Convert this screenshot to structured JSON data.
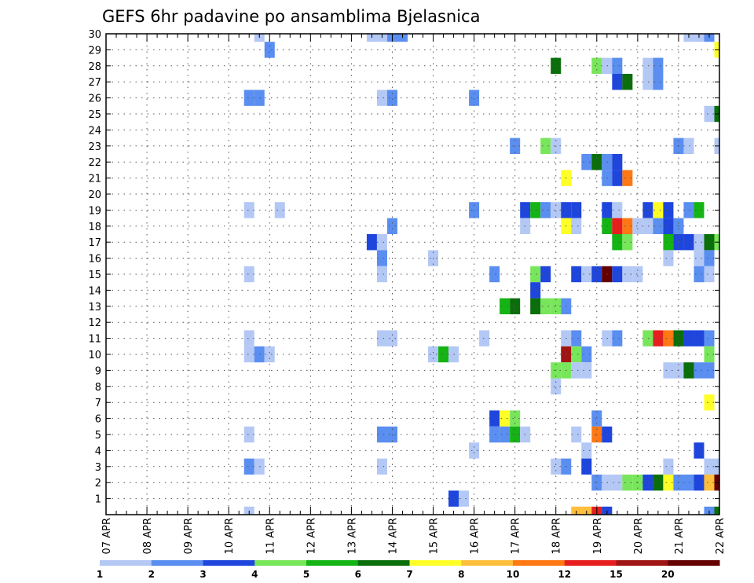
{
  "chart_data": {
    "type": "heatmap",
    "title": "GEFS 6hr padavine po ansamblima Bjelasnica",
    "x_tick_labels": [
      "07 APR",
      "08 APR",
      "09 APR",
      "10 APR",
      "11 APR",
      "12 APR",
      "13 APR",
      "14 APR",
      "15 APR",
      "16 APR",
      "17 APR",
      "18 APR",
      "19 APR",
      "20 APR",
      "21 APR",
      "22 APR"
    ],
    "x_steps_per_day": 4,
    "x_range_steps": [
      0,
      60
    ],
    "y_tick_labels": [
      "1",
      "2",
      "3",
      "4",
      "5",
      "6",
      "7",
      "8",
      "9",
      "10",
      "11",
      "12",
      "13",
      "14",
      "15",
      "16",
      "17",
      "18",
      "19",
      "20",
      "21",
      "22",
      "23",
      "24",
      "25",
      "26",
      "27",
      "28",
      "29",
      "30"
    ],
    "y_range": [
      0,
      30
    ],
    "grid": true,
    "legend_placement": "bottom",
    "legend": {
      "labels": [
        "1",
        "2",
        "3",
        "4",
        "5",
        "6",
        "7",
        "8",
        "10",
        "12",
        "15",
        "20"
      ],
      "colors": [
        "#b4c8f5",
        "#5a8ef0",
        "#1e46dc",
        "#78e65a",
        "#14b414",
        "#0a6e0a",
        "#ffff28",
        "#ffbe3c",
        "#ff7814",
        "#e61e1e",
        "#a01414",
        "#640000"
      ]
    },
    "cells": [
      [
        15,
        30,
        0
      ],
      [
        16,
        29,
        1
      ],
      [
        26,
        30,
        0
      ],
      [
        27,
        30,
        0
      ],
      [
        28,
        30,
        1
      ],
      [
        29,
        30,
        1
      ],
      [
        57,
        30,
        0
      ],
      [
        58,
        30,
        0
      ],
      [
        59,
        30,
        1
      ],
      [
        60,
        29,
        6
      ],
      [
        44,
        28,
        5
      ],
      [
        48,
        28,
        3
      ],
      [
        49,
        28,
        0
      ],
      [
        50,
        28,
        1
      ],
      [
        53,
        28,
        0
      ],
      [
        54,
        28,
        1
      ],
      [
        50,
        27,
        2
      ],
      [
        51,
        27,
        5
      ],
      [
        53,
        27,
        0
      ],
      [
        54,
        27,
        1
      ],
      [
        14,
        26,
        1
      ],
      [
        15,
        26,
        1
      ],
      [
        27,
        26,
        0
      ],
      [
        28,
        26,
        1
      ],
      [
        36,
        26,
        1
      ],
      [
        59,
        25,
        0
      ],
      [
        60,
        25,
        5
      ],
      [
        40,
        23,
        1
      ],
      [
        43,
        23,
        3
      ],
      [
        44,
        23,
        0
      ],
      [
        56,
        23,
        1
      ],
      [
        57,
        23,
        0
      ],
      [
        60,
        23,
        0
      ],
      [
        47,
        22,
        1
      ],
      [
        48,
        22,
        5
      ],
      [
        49,
        22,
        1
      ],
      [
        50,
        22,
        2
      ],
      [
        45,
        21,
        6
      ],
      [
        49,
        21,
        1
      ],
      [
        50,
        21,
        2
      ],
      [
        51,
        21,
        8
      ],
      [
        14,
        19,
        0
      ],
      [
        17,
        19,
        0
      ],
      [
        36,
        19,
        1
      ],
      [
        41,
        19,
        2
      ],
      [
        42,
        19,
        4
      ],
      [
        43,
        19,
        1
      ],
      [
        44,
        19,
        0
      ],
      [
        45,
        19,
        2
      ],
      [
        46,
        19,
        2
      ],
      [
        49,
        19,
        2
      ],
      [
        50,
        19,
        0
      ],
      [
        53,
        19,
        2
      ],
      [
        54,
        19,
        6
      ],
      [
        55,
        19,
        2
      ],
      [
        57,
        19,
        1
      ],
      [
        58,
        19,
        4
      ],
      [
        28,
        18,
        1
      ],
      [
        41,
        18,
        0
      ],
      [
        45,
        18,
        6
      ],
      [
        46,
        18,
        0
      ],
      [
        49,
        18,
        4
      ],
      [
        50,
        18,
        9
      ],
      [
        51,
        18,
        8
      ],
      [
        52,
        18,
        0
      ],
      [
        53,
        18,
        0
      ],
      [
        54,
        18,
        1
      ],
      [
        55,
        18,
        2
      ],
      [
        56,
        18,
        1
      ],
      [
        26,
        17,
        2
      ],
      [
        27,
        17,
        0
      ],
      [
        50,
        17,
        4
      ],
      [
        51,
        17,
        3
      ],
      [
        55,
        17,
        4
      ],
      [
        56,
        17,
        2
      ],
      [
        57,
        17,
        2
      ],
      [
        58,
        17,
        0
      ],
      [
        59,
        17,
        5
      ],
      [
        60,
        17,
        3
      ],
      [
        27,
        16,
        1
      ],
      [
        32,
        16,
        0
      ],
      [
        55,
        16,
        0
      ],
      [
        58,
        16,
        0
      ],
      [
        59,
        16,
        1
      ],
      [
        14,
        15,
        0
      ],
      [
        27,
        15,
        0
      ],
      [
        38,
        15,
        1
      ],
      [
        42,
        15,
        3
      ],
      [
        43,
        15,
        2
      ],
      [
        46,
        15,
        2
      ],
      [
        47,
        15,
        0
      ],
      [
        48,
        15,
        2
      ],
      [
        49,
        15,
        11
      ],
      [
        50,
        15,
        2
      ],
      [
        51,
        15,
        0
      ],
      [
        52,
        15,
        0
      ],
      [
        58,
        15,
        1
      ],
      [
        59,
        15,
        0
      ],
      [
        42,
        14,
        2
      ],
      [
        39,
        13,
        4
      ],
      [
        40,
        13,
        5
      ],
      [
        42,
        13,
        5
      ],
      [
        43,
        13,
        3
      ],
      [
        44,
        13,
        3
      ],
      [
        45,
        13,
        1
      ],
      [
        14,
        11,
        0
      ],
      [
        27,
        11,
        0
      ],
      [
        28,
        11,
        0
      ],
      [
        37,
        11,
        0
      ],
      [
        45,
        11,
        0
      ],
      [
        46,
        11,
        1
      ],
      [
        49,
        11,
        0
      ],
      [
        50,
        11,
        1
      ],
      [
        53,
        11,
        3
      ],
      [
        54,
        11,
        9
      ],
      [
        55,
        11,
        8
      ],
      [
        56,
        11,
        5
      ],
      [
        57,
        11,
        2
      ],
      [
        58,
        11,
        2
      ],
      [
        59,
        11,
        1
      ],
      [
        14,
        10,
        0
      ],
      [
        15,
        10,
        1
      ],
      [
        16,
        10,
        0
      ],
      [
        32,
        10,
        0
      ],
      [
        33,
        10,
        4
      ],
      [
        34,
        10,
        0
      ],
      [
        45,
        10,
        10
      ],
      [
        46,
        10,
        3
      ],
      [
        47,
        10,
        1
      ],
      [
        59,
        10,
        3
      ],
      [
        44,
        9,
        3
      ],
      [
        45,
        9,
        3
      ],
      [
        46,
        9,
        0
      ],
      [
        47,
        9,
        0
      ],
      [
        55,
        9,
        0
      ],
      [
        56,
        9,
        0
      ],
      [
        57,
        9,
        5
      ],
      [
        58,
        9,
        1
      ],
      [
        59,
        9,
        1
      ],
      [
        44,
        8,
        0
      ],
      [
        59,
        7,
        6
      ],
      [
        38,
        6,
        2
      ],
      [
        39,
        6,
        6
      ],
      [
        40,
        6,
        3
      ],
      [
        48,
        6,
        1
      ],
      [
        14,
        5,
        0
      ],
      [
        27,
        5,
        1
      ],
      [
        28,
        5,
        1
      ],
      [
        38,
        5,
        1
      ],
      [
        39,
        5,
        1
      ],
      [
        40,
        5,
        4
      ],
      [
        41,
        5,
        0
      ],
      [
        46,
        5,
        0
      ],
      [
        48,
        5,
        8
      ],
      [
        49,
        5,
        2
      ],
      [
        36,
        4,
        0
      ],
      [
        47,
        4,
        0
      ],
      [
        58,
        4,
        2
      ],
      [
        14,
        3,
        1
      ],
      [
        15,
        3,
        0
      ],
      [
        27,
        3,
        0
      ],
      [
        44,
        3,
        0
      ],
      [
        45,
        3,
        1
      ],
      [
        47,
        3,
        2
      ],
      [
        55,
        3,
        0
      ],
      [
        59,
        3,
        0
      ],
      [
        60,
        3,
        0
      ],
      [
        48,
        2,
        1
      ],
      [
        49,
        2,
        0
      ],
      [
        50,
        2,
        0
      ],
      [
        51,
        2,
        3
      ],
      [
        52,
        2,
        3
      ],
      [
        53,
        2,
        2
      ],
      [
        54,
        2,
        5
      ],
      [
        55,
        2,
        6
      ],
      [
        56,
        2,
        1
      ],
      [
        57,
        2,
        1
      ],
      [
        58,
        2,
        2
      ],
      [
        59,
        2,
        7
      ],
      [
        60,
        2,
        11
      ],
      [
        34,
        1,
        2
      ],
      [
        35,
        1,
        0
      ],
      [
        14,
        0,
        0
      ],
      [
        46,
        0,
        7
      ],
      [
        47,
        0,
        7
      ],
      [
        48,
        0,
        9
      ],
      [
        49,
        0,
        2
      ],
      [
        59,
        0,
        1
      ],
      [
        60,
        0,
        5
      ]
    ]
  }
}
